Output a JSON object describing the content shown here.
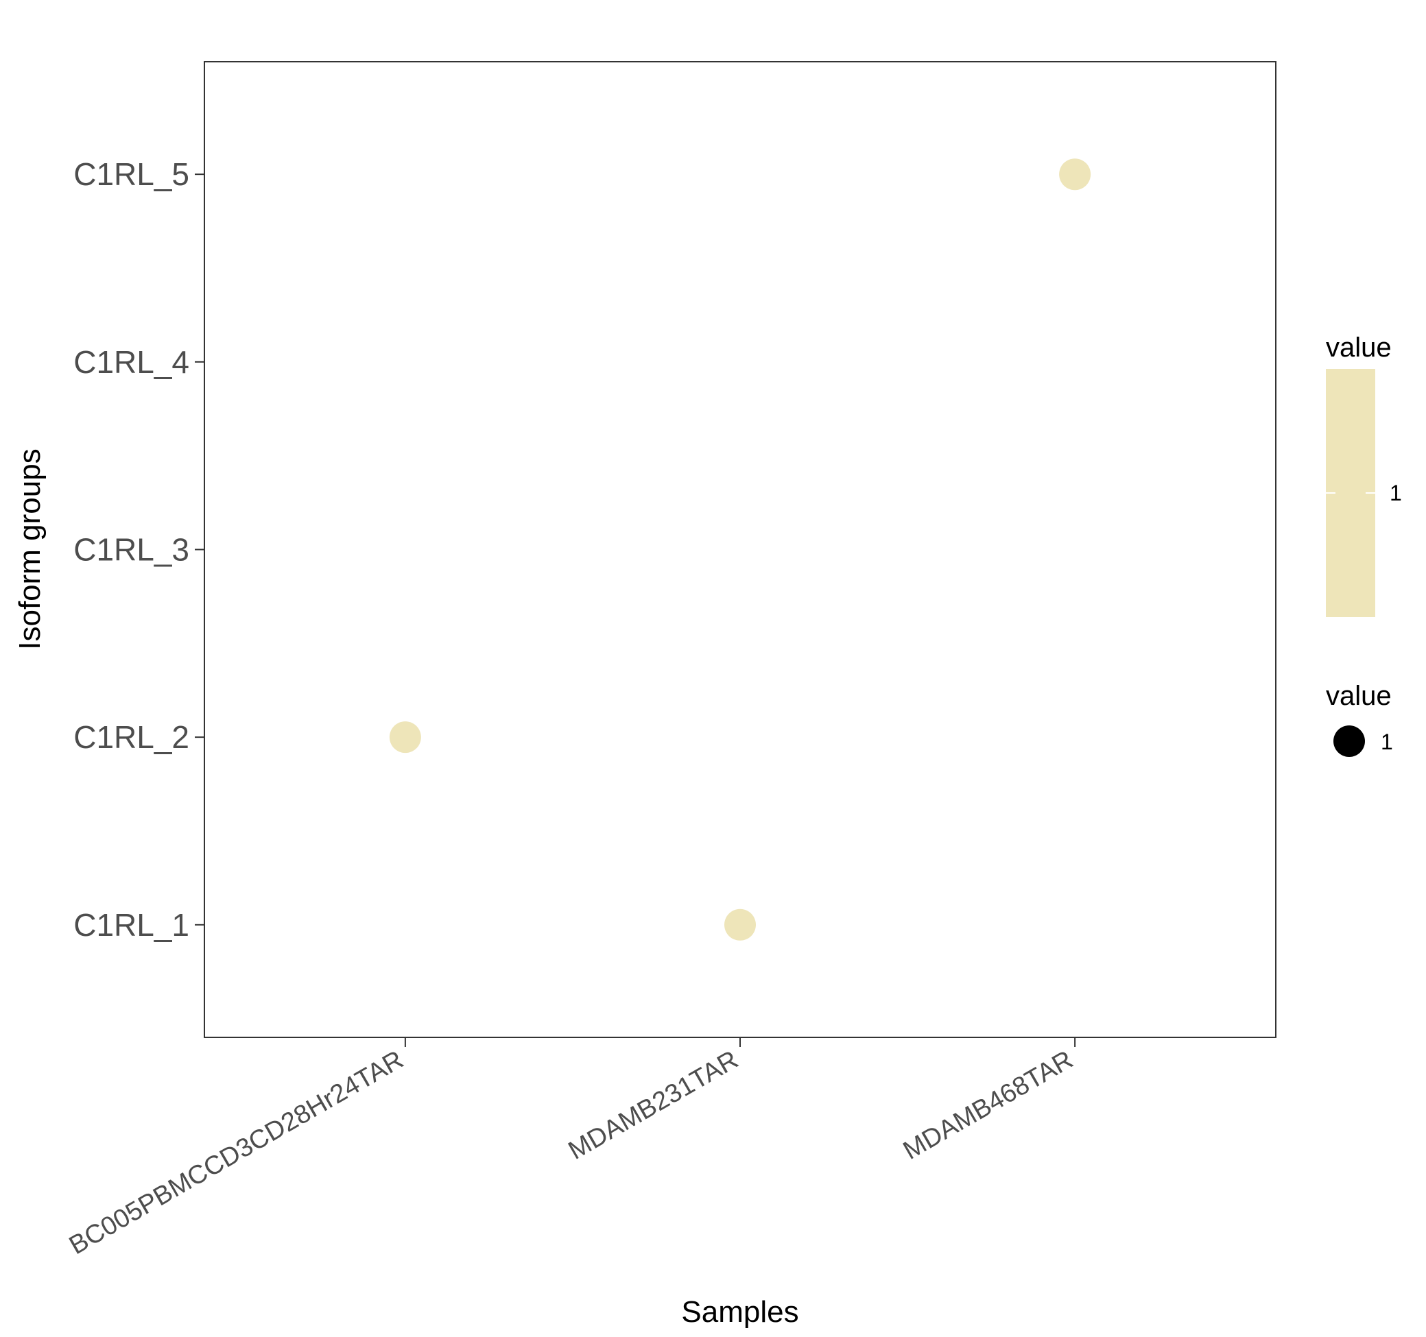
{
  "chart_data": {
    "type": "scatter",
    "xlabel": "Samples",
    "ylabel": "Isoform groups",
    "categories_x": [
      "BC005PBMCCD3CD28Hr24TAR",
      "MDAMB231TAR",
      "MDAMB468TAR"
    ],
    "categories_y": [
      "C1RL_1",
      "C1RL_2",
      "C1RL_3",
      "C1RL_4",
      "C1RL_5"
    ],
    "points": [
      {
        "x": "BC005PBMCCD3CD28Hr24TAR",
        "y": "C1RL_2",
        "value": 1
      },
      {
        "x": "MDAMB231TAR",
        "y": "C1RL_1",
        "value": 1
      },
      {
        "x": "MDAMB468TAR",
        "y": "C1RL_5",
        "value": 1
      }
    ],
    "point_color": "#eee5b9",
    "grid": false,
    "legend": {
      "position": "right",
      "color": {
        "title": "value",
        "label": "1",
        "color": "#eee5b9"
      },
      "size": {
        "title": "value",
        "label": "1",
        "color": "#000000"
      }
    }
  }
}
